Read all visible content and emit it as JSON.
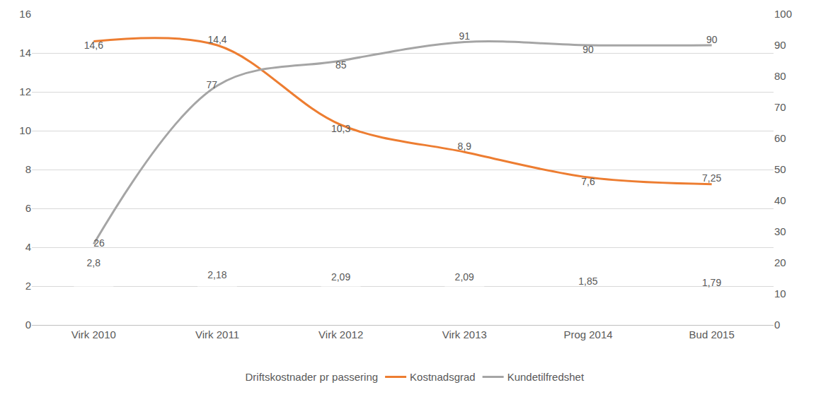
{
  "chart_data": {
    "type": "combo",
    "categories": [
      "Virk 2010",
      "Virk 2011",
      "Virk 2012",
      "Virk 2013",
      "Prog 2014",
      "Bud 2015"
    ],
    "ylim": [
      0,
      16
    ],
    "yticks": [
      0,
      2,
      4,
      6,
      8,
      10,
      12,
      14,
      16
    ],
    "y2lim": [
      0,
      100
    ],
    "y2ticks": [
      0,
      10,
      20,
      30,
      40,
      50,
      60,
      70,
      80,
      90,
      100
    ],
    "grid": true,
    "legend": "bottom",
    "data_labels": true,
    "series": [
      {
        "name": "Driftskostnader pr passering",
        "type": "bar",
        "color": "#9dc3e6",
        "values": [
          2.8,
          2.18,
          2.09,
          2.09,
          1.85,
          1.79
        ],
        "value_labels": [
          "2,8",
          "2,18",
          "2,09",
          "2,09",
          "1,85",
          "1,79"
        ]
      },
      {
        "name": "Kostnadsgrad",
        "type": "line",
        "color": "#ed7d31",
        "line_style": "smooth",
        "values": [
          14.6,
          14.4,
          10.3,
          8.9,
          7.6,
          7.25
        ],
        "value_labels": [
          "14,6",
          "14,4",
          "10,3",
          "8,9",
          "7,6",
          "7,25"
        ]
      },
      {
        "name": "Kundetilfredshet",
        "type": "line",
        "color": "#a5a5a5",
        "line_style": "smooth",
        "axis": "y2",
        "values": [
          26,
          77,
          85,
          91,
          90,
          90
        ]
      }
    ]
  }
}
